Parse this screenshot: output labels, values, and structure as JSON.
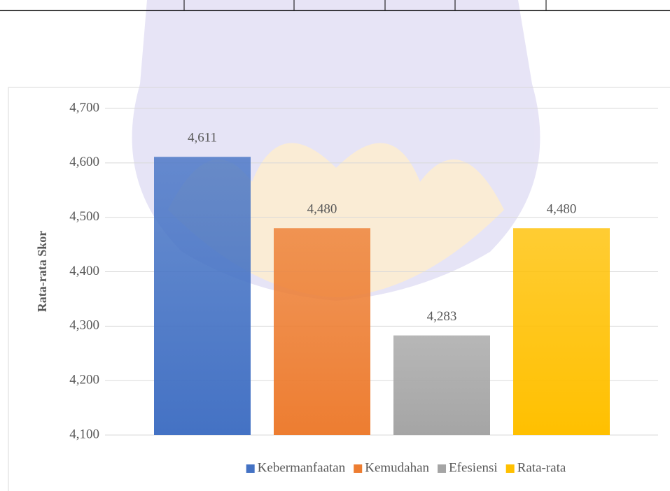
{
  "chart_data": {
    "type": "bar",
    "y_label": "Rata-rata Skor",
    "series": [
      {
        "name": "Kebermanfaatan",
        "color": "#4472c4",
        "values": [
          4.611
        ],
        "value_labels": [
          "4,611"
        ]
      },
      {
        "name": "Kemudahan",
        "color": "#ed7d31",
        "values": [
          4.48
        ],
        "value_labels": [
          "4,480"
        ]
      },
      {
        "name": "Efesiensi",
        "color": "#a5a5a5",
        "values": [
          4.283
        ],
        "value_labels": [
          "4,283"
        ]
      },
      {
        "name": "Rata-rata",
        "color": "#ffc000",
        "values": [
          4.48
        ],
        "value_labels": [
          "4,480"
        ]
      }
    ],
    "ylim": [
      4.1,
      4.7
    ],
    "yticks": [
      {
        "value": 4.1,
        "label": "4,100"
      },
      {
        "value": 4.2,
        "label": "4,200"
      },
      {
        "value": 4.3,
        "label": "4,300"
      },
      {
        "value": 4.4,
        "label": "4,400"
      },
      {
        "value": 4.5,
        "label": "4,500"
      },
      {
        "value": 4.6,
        "label": "4,600"
      },
      {
        "value": 4.7,
        "label": "4,700"
      }
    ],
    "grid": true,
    "legend": "bottom"
  }
}
